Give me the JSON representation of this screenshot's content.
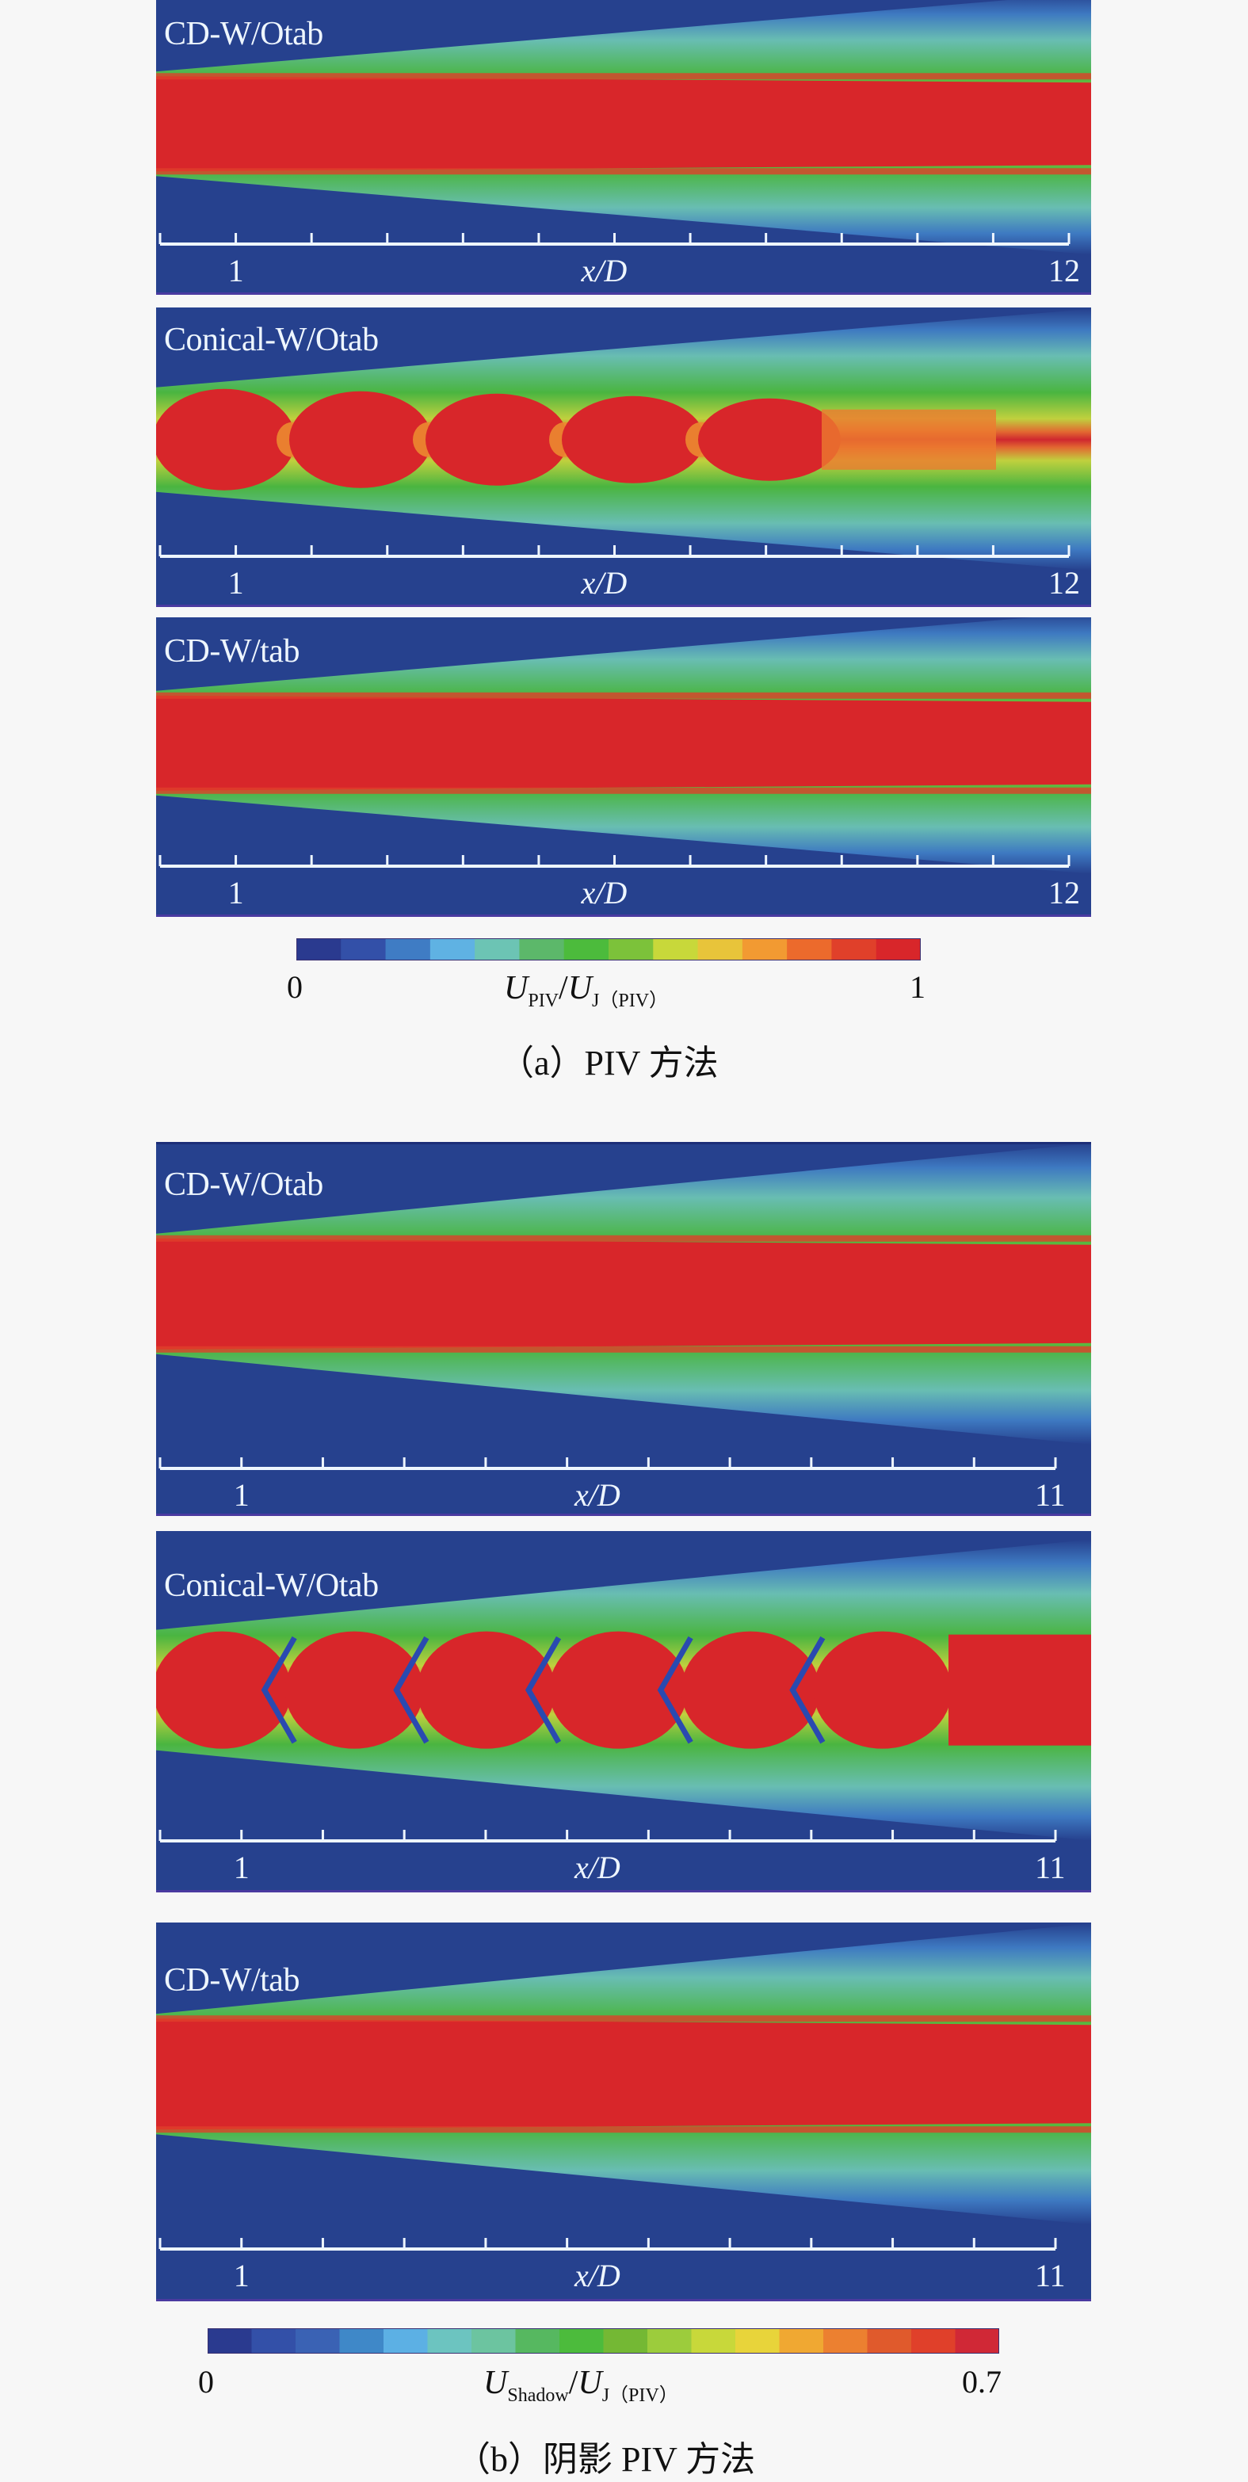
{
  "chart_data": [
    {
      "type": "heatmap",
      "group": "a",
      "caption": "（a）PIV 方法",
      "colorbar": {
        "min_label": "0",
        "max_label": "1",
        "range": [
          0,
          1
        ],
        "title_main": "U",
        "title_sub1": "PIV",
        "title_sep": "/",
        "title_main2": "U",
        "title_sub2": "J（PIV）",
        "colors": [
          "#2a3a8f",
          "#3350a8",
          "#3f7cc4",
          "#5fb2e3",
          "#6cc4b4",
          "#5cb86a",
          "#4cbb3c",
          "#7cc23a",
          "#c8d83a",
          "#e8c43a",
          "#f29a32",
          "#ec6a2c",
          "#e0402a",
          "#d8262a"
        ]
      },
      "panels": [
        {
          "label": "CD-W/Otab",
          "xlabel": "x/D",
          "tick_labels": [
            "1",
            "12"
          ],
          "xlim": [
            0,
            12
          ],
          "pattern": "straight"
        },
        {
          "label": "Conical-W/Otab",
          "xlabel": "x/D",
          "tick_labels": [
            "1",
            "12"
          ],
          "xlim": [
            0,
            12
          ],
          "pattern": "shock-cells"
        },
        {
          "label": "CD-W/tab",
          "xlabel": "x/D",
          "tick_labels": [
            "1",
            "12"
          ],
          "xlim": [
            0,
            12
          ],
          "pattern": "straight"
        }
      ]
    },
    {
      "type": "heatmap",
      "group": "b",
      "caption": "（b）阴影 PIV 方法",
      "colorbar": {
        "min_label": "0",
        "max_label": "0.7",
        "range": [
          0,
          0.7
        ],
        "title_main": "U",
        "title_sub1": "Shadow",
        "title_sep": "/",
        "title_main2": "U",
        "title_sub2": "J（PIV）",
        "colors": [
          "#2a3a8f",
          "#3350a8",
          "#3a62b4",
          "#3f88c8",
          "#5cb0e4",
          "#6cc4c0",
          "#6cc4a0",
          "#56b860",
          "#4cbb3c",
          "#74b834",
          "#9ccc3c",
          "#c8d83a",
          "#e8d43a",
          "#f0a832",
          "#ec8030",
          "#e05a2c",
          "#e0402a",
          "#d02836"
        ]
      },
      "panels": [
        {
          "label": "CD-W/Otab",
          "xlabel": "x/D",
          "tick_labels": [
            "1",
            "11"
          ],
          "xlim": [
            0,
            11
          ],
          "pattern": "straight-wide"
        },
        {
          "label": "Conical-W/Otab",
          "xlabel": "x/D",
          "tick_labels": [
            "1",
            "11"
          ],
          "xlim": [
            0,
            11
          ],
          "pattern": "shock-cells-wide"
        },
        {
          "label": "CD-W/tab",
          "xlabel": "x/D",
          "tick_labels": [
            "1",
            "11"
          ],
          "xlim": [
            0,
            11
          ],
          "pattern": "straight-wide"
        }
      ]
    }
  ]
}
